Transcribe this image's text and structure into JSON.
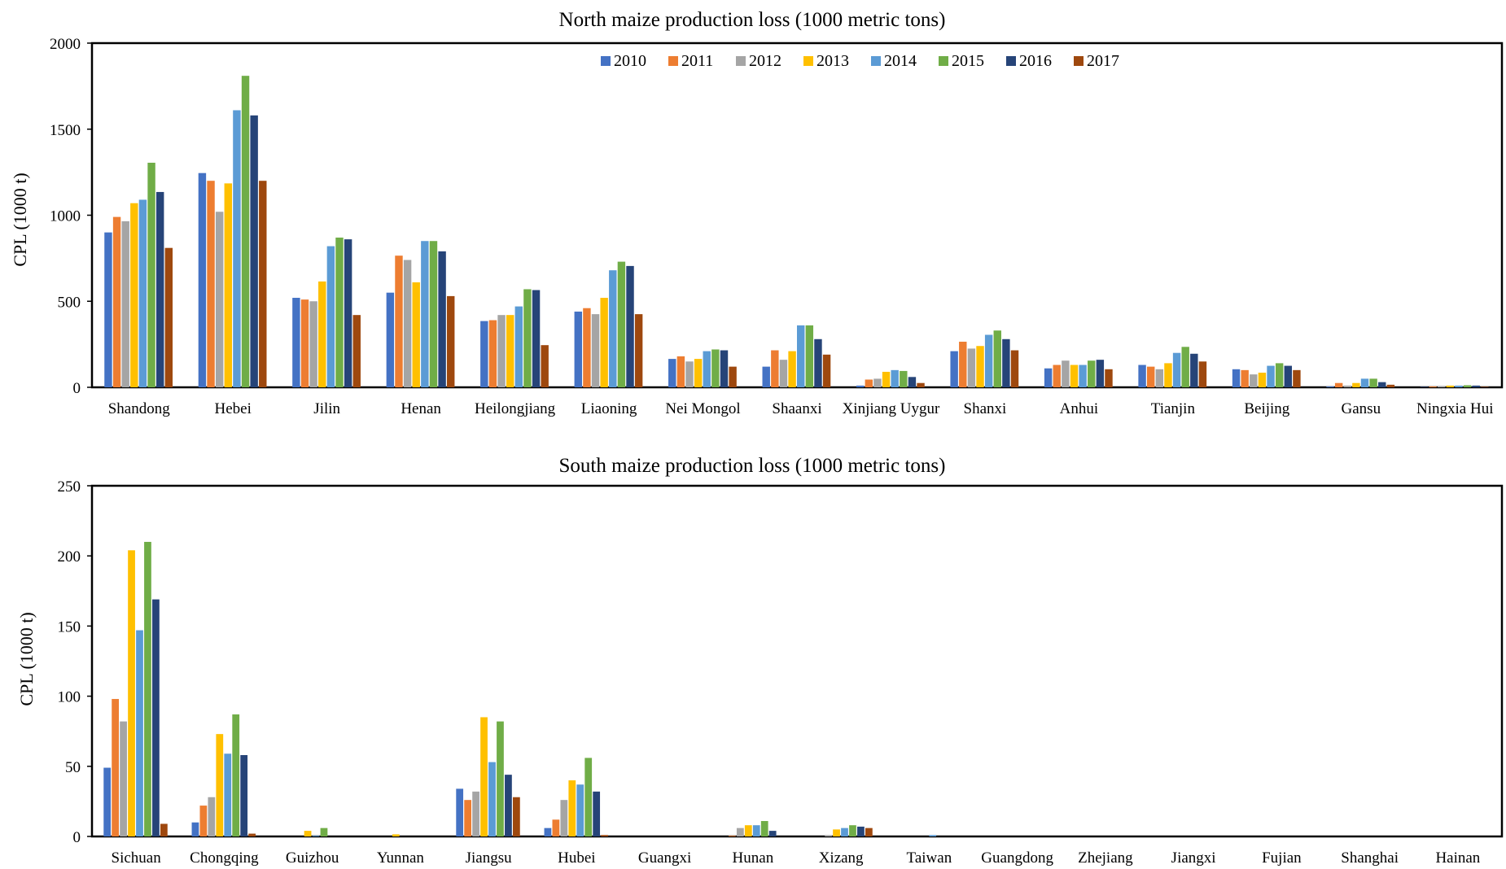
{
  "chart_data": [
    {
      "type": "bar",
      "title": "North maize production loss (1000 metric tons)",
      "ylabel": "CPL (1000 t)",
      "xlabel": "",
      "ylim": [
        0,
        2000
      ],
      "yticks": [
        0,
        500,
        1000,
        1500,
        2000
      ],
      "grid": false,
      "legend": "top-center",
      "categories": [
        "Shandong",
        "Hebei",
        "Jilin",
        "Henan",
        "Heilongjiang",
        "Liaoning",
        "Nei Mongol",
        "Shaanxi",
        "Xinjiang Uygur",
        "Shanxi",
        "Anhui",
        "Tianjin",
        "Beijing",
        "Gansu",
        "Ningxia Hui"
      ],
      "series": [
        {
          "name": "2010",
          "color": "#4472C4",
          "values": [
            900,
            1245,
            520,
            550,
            385,
            440,
            165,
            120,
            10,
            210,
            110,
            130,
            105,
            5,
            2
          ]
        },
        {
          "name": "2011",
          "color": "#ED7D31",
          "values": [
            990,
            1200,
            510,
            765,
            390,
            460,
            180,
            215,
            45,
            265,
            130,
            120,
            100,
            25,
            5
          ]
        },
        {
          "name": "2012",
          "color": "#A5A5A5",
          "values": [
            965,
            1020,
            500,
            740,
            420,
            425,
            150,
            160,
            50,
            225,
            155,
            105,
            75,
            10,
            5
          ]
        },
        {
          "name": "2013",
          "color": "#FFC000",
          "values": [
            1070,
            1185,
            615,
            610,
            420,
            520,
            165,
            210,
            90,
            240,
            130,
            140,
            85,
            25,
            10
          ]
        },
        {
          "name": "2014",
          "color": "#5B9BD5",
          "values": [
            1090,
            1610,
            820,
            850,
            470,
            680,
            210,
            360,
            100,
            305,
            130,
            200,
            125,
            50,
            10
          ]
        },
        {
          "name": "2015",
          "color": "#70AD47",
          "values": [
            1305,
            1810,
            870,
            850,
            570,
            730,
            220,
            360,
            95,
            330,
            155,
            235,
            140,
            50,
            12
          ]
        },
        {
          "name": "2016",
          "color": "#264478",
          "values": [
            1135,
            1580,
            860,
            790,
            565,
            705,
            215,
            280,
            60,
            280,
            160,
            195,
            125,
            30,
            10
          ]
        },
        {
          "name": "2017",
          "color": "#9E480E",
          "values": [
            810,
            1200,
            420,
            530,
            245,
            425,
            120,
            190,
            25,
            215,
            105,
            150,
            100,
            15,
            3
          ]
        }
      ]
    },
    {
      "type": "bar",
      "title": "South maize production loss (1000 metric tons)",
      "ylabel": "CPL (1000 t)",
      "xlabel": "",
      "ylim": [
        0,
        250
      ],
      "yticks": [
        0,
        50,
        100,
        150,
        200,
        250
      ],
      "grid": false,
      "legend": "none",
      "categories": [
        "Sichuan",
        "Chongqing",
        "Guizhou",
        "Yunnan",
        "Jiangsu",
        "Hubei",
        "Guangxi",
        "Hunan",
        "Xizang",
        "Taiwan",
        "Guangdong",
        "Zhejiang",
        "Jiangxi",
        "Fujian",
        "Shanghai",
        "Hainan"
      ],
      "series": [
        {
          "name": "2010",
          "color": "#4472C4",
          "values": [
            49,
            10,
            0,
            0,
            34,
            6,
            0,
            0,
            0,
            0,
            0,
            0,
            0,
            0,
            0,
            0
          ]
        },
        {
          "name": "2011",
          "color": "#ED7D31",
          "values": [
            98,
            22,
            0,
            0,
            26,
            12,
            0,
            0.5,
            0,
            0,
            0,
            0,
            0,
            0,
            0,
            0
          ]
        },
        {
          "name": "2012",
          "color": "#A5A5A5",
          "values": [
            82,
            28,
            0,
            0,
            32,
            26,
            0,
            6,
            1,
            0,
            0,
            0,
            0,
            0,
            0,
            0
          ]
        },
        {
          "name": "2013",
          "color": "#FFC000",
          "values": [
            204,
            73,
            4,
            1.5,
            85,
            40,
            0,
            8,
            5,
            0,
            0,
            0,
            0,
            0,
            0,
            0
          ]
        },
        {
          "name": "2014",
          "color": "#5B9BD5",
          "values": [
            147,
            59,
            0.5,
            0,
            53,
            37,
            0,
            8,
            6,
            1,
            0,
            0,
            0,
            0,
            0,
            0
          ]
        },
        {
          "name": "2015",
          "color": "#70AD47",
          "values": [
            210,
            87,
            6,
            0,
            82,
            56,
            0,
            11,
            8,
            0,
            0,
            0,
            0,
            0,
            0,
            0
          ]
        },
        {
          "name": "2016",
          "color": "#264478",
          "values": [
            169,
            58,
            0,
            0,
            44,
            32,
            0,
            4,
            7,
            0,
            0,
            0,
            0,
            0,
            0,
            0
          ]
        },
        {
          "name": "2017",
          "color": "#9E480E",
          "values": [
            9,
            2,
            0,
            0,
            28,
            1,
            0,
            0,
            6,
            0,
            0,
            0,
            0,
            0,
            0,
            0
          ]
        }
      ]
    }
  ]
}
